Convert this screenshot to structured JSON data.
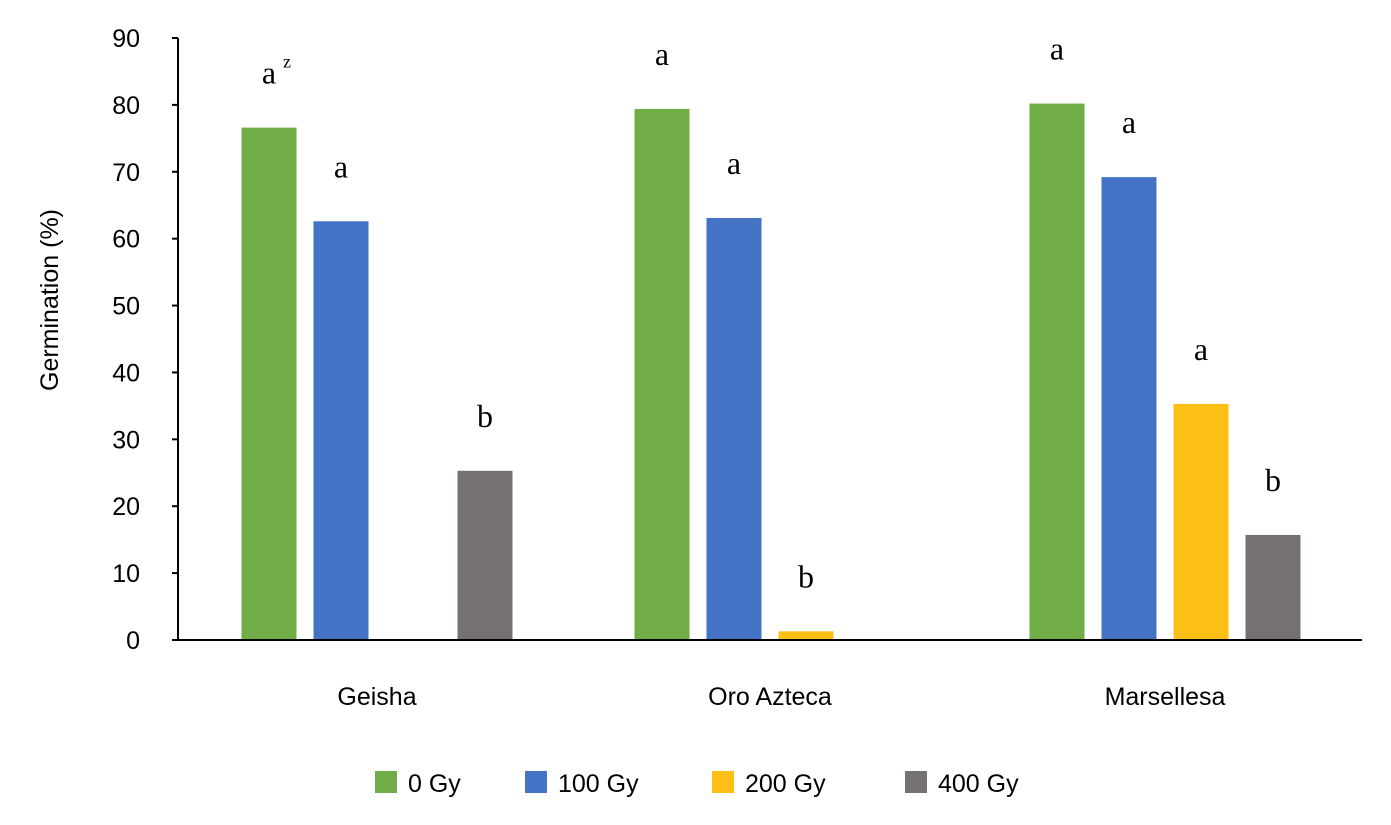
{
  "chart_data": {
    "type": "bar",
    "title": "",
    "xlabel": "",
    "ylabel": "Germination (%)",
    "ylim": [
      0,
      90
    ],
    "yticks": [
      0,
      10,
      20,
      30,
      40,
      50,
      60,
      70,
      80,
      90
    ],
    "grid": false,
    "legend_position": "bottom",
    "categories": [
      "Geisha",
      "Oro Azteca",
      "Marsellesa"
    ],
    "series": [
      {
        "name": "0 Gy",
        "color": "#70AD47",
        "values": [
          76.6,
          79.4,
          80.2
        ],
        "labels": [
          "a",
          "a",
          "a"
        ],
        "label_superscripts": [
          "z",
          "",
          ""
        ]
      },
      {
        "name": "100 Gy",
        "color": "#4472C4",
        "values": [
          62.6,
          63.1,
          69.2
        ],
        "labels": [
          "a",
          "a",
          "a"
        ],
        "label_superscripts": [
          "",
          "",
          ""
        ]
      },
      {
        "name": "200 Gy",
        "color": "#FBBF16",
        "values": [
          0,
          1.3,
          35.3
        ],
        "labels": [
          "",
          "b",
          "a"
        ],
        "label_superscripts": [
          "",
          "",
          ""
        ]
      },
      {
        "name": "400 Gy",
        "color": "#767171",
        "values": [
          25.3,
          0,
          15.7
        ],
        "labels": [
          "b",
          "",
          "b"
        ],
        "label_superscripts": [
          "",
          "",
          ""
        ]
      }
    ]
  }
}
